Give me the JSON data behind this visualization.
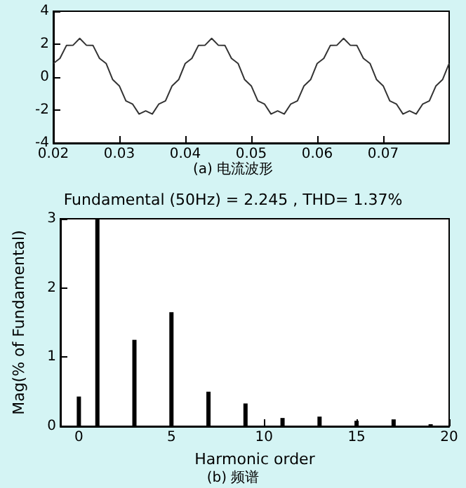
{
  "chart_data": [
    {
      "type": "line",
      "x": [
        0.02,
        0.021,
        0.022,
        0.023,
        0.024,
        0.025,
        0.026,
        0.027,
        0.028,
        0.029,
        0.03,
        0.031,
        0.032,
        0.033,
        0.034,
        0.035,
        0.036,
        0.037,
        0.038,
        0.039,
        0.04,
        0.041,
        0.042,
        0.043,
        0.044,
        0.045,
        0.046,
        0.047,
        0.048,
        0.049,
        0.05,
        0.051,
        0.052,
        0.053,
        0.054,
        0.055,
        0.056,
        0.057,
        0.058,
        0.059,
        0.06,
        0.061,
        0.062,
        0.063,
        0.064,
        0.065,
        0.066,
        0.067,
        0.068,
        0.069,
        0.07,
        0.071,
        0.072,
        0.073,
        0.074,
        0.075,
        0.076,
        0.077,
        0.078,
        0.079,
        0.08
      ],
      "values": [
        0.83,
        1.14,
        1.93,
        1.94,
        2.35,
        1.94,
        1.93,
        1.14,
        0.83,
        -0.15,
        -0.53,
        -1.44,
        -1.63,
        -2.24,
        -2.05,
        -2.24,
        -1.63,
        -1.44,
        -0.53,
        -0.15,
        0.83,
        1.14,
        1.93,
        1.94,
        2.35,
        1.94,
        1.93,
        1.14,
        0.83,
        -0.15,
        -0.53,
        -1.44,
        -1.63,
        -2.24,
        -2.05,
        -2.24,
        -1.63,
        -1.44,
        -0.53,
        -0.15,
        0.83,
        1.14,
        1.93,
        1.94,
        2.35,
        1.94,
        1.93,
        1.14,
        0.83,
        -0.15,
        -0.53,
        -1.44,
        -1.63,
        -2.24,
        -2.05,
        -2.24,
        -1.63,
        -1.44,
        -0.53,
        -0.15,
        0.83
      ],
      "color": "#333333",
      "marker": "none",
      "line_style": "solid",
      "xlim": [
        0.02,
        0.08
      ],
      "xticks": [
        0.02,
        0.03,
        0.04,
        0.05,
        0.06,
        0.07
      ],
      "ylim": [
        -4,
        4
      ],
      "yticks": [
        -4,
        -2,
        0,
        2,
        4
      ],
      "grid": false,
      "annotations": [
        "(a) 电流波形"
      ]
    },
    {
      "type": "bar",
      "title": "Fundamental (50Hz) = 2.245 , THD= 1.37%",
      "xlabel": "Harmonic order",
      "ylabel": "Mag(% of Fundamental)",
      "x": [
        0,
        1,
        3,
        5,
        7,
        9,
        11,
        13,
        15,
        17,
        19
      ],
      "values": [
        0.43,
        3,
        1.25,
        1.65,
        0.5,
        0.33,
        0.12,
        0.14,
        0.08,
        0.1,
        0.03
      ],
      "color": "#000000",
      "xlim": [
        -1,
        20
      ],
      "xticks": [
        0,
        5,
        10,
        15,
        20
      ],
      "ylim": [
        0,
        3
      ],
      "yticks": [
        0,
        1,
        2,
        3
      ],
      "grid": false,
      "annotations": [
        "(b) 频谱"
      ]
    }
  ]
}
